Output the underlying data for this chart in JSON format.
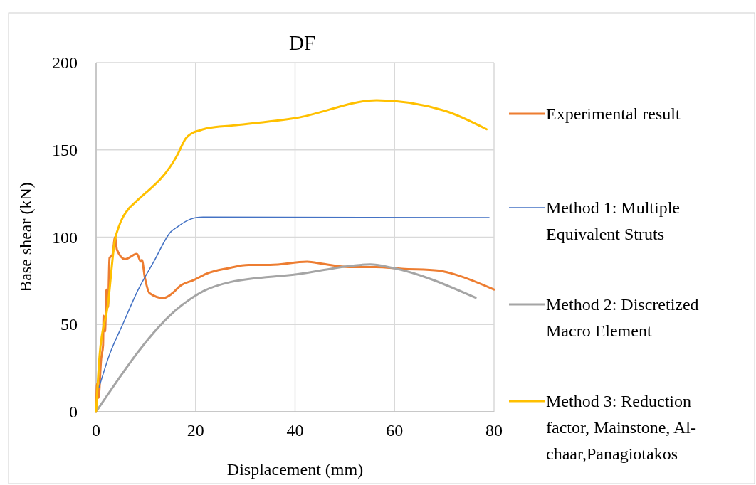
{
  "chart_data": {
    "type": "line",
    "title": "DF",
    "xlabel": "Displacement (mm)",
    "ylabel": "Base shear (kN)",
    "xlim": [
      0,
      80
    ],
    "xticks": [
      0,
      20,
      40,
      60,
      80
    ],
    "ylim": [
      0,
      200
    ],
    "yticks": [
      0,
      50,
      100,
      150,
      200
    ],
    "grid": true,
    "legend": "right",
    "marker": "none",
    "line_style": "solid",
    "series": [
      {
        "name": "Experimental result",
        "color": "#ed7d31",
        "x": [
          0,
          0.2,
          0.5,
          1,
          1.4,
          1.5,
          1.8,
          2.1,
          2.4,
          2.7,
          3.3,
          3.8,
          4.2,
          5.8,
          8.2,
          9,
          9.2,
          9.8,
          10.8,
          13.5,
          15.3,
          16.9,
          19.6,
          22.2,
          26.5,
          30.7,
          35,
          42.4,
          45.6,
          50.9,
          56.2,
          61.5,
          68.9,
          71,
          80
        ],
        "values": [
          0,
          16,
          8,
          30,
          38,
          55,
          46,
          70,
          60,
          88,
          90,
          100,
          92.7,
          87.4,
          90.4,
          86,
          87,
          76.9,
          67.8,
          65.1,
          67.8,
          72.1,
          75.4,
          79.1,
          82.2,
          84.1,
          84.1,
          85.9,
          84.7,
          82.9,
          82.9,
          81.9,
          80.9,
          79.6,
          70
        ]
      },
      {
        "name": "Method 1: Multiple Equivalent Struts",
        "color": "#4472c4",
        "x": [
          0.6,
          2.6,
          5.5,
          8.3,
          11.7,
          15,
          16.4,
          18,
          20.1,
          21.5,
          79
        ],
        "values": [
          14,
          32,
          51,
          69,
          86.5,
          103,
          106,
          109,
          111.2,
          111.5,
          111.2
        ]
      },
      {
        "name": "Method 2: Discretized Macro Element",
        "color": "#a5a5a5",
        "x": [
          0,
          16.9,
          18.3,
          21.7,
          27,
          40.3,
          55.1,
          59.3,
          76.3
        ],
        "values": [
          0,
          60.3,
          63.3,
          69.3,
          74.3,
          78.7,
          84.4,
          82.6,
          65.3
        ]
      },
      {
        "name": "Method 3: Reduction factor, Mainstone, Al-chaar,Panagiotakos",
        "color": "#ffc000",
        "x": [
          0,
          0.7,
          2.4,
          3.8,
          4.5,
          6.6,
          7.7,
          16.4,
          18,
          19.3,
          20.7,
          22.5,
          27.6,
          40.3,
          56.4,
          70.2,
          78.5
        ],
        "values": [
          0,
          32,
          62,
          98.7,
          105.5,
          116.5,
          119.5,
          147.4,
          156.5,
          159.6,
          161,
          162.5,
          164,
          168.3,
          178.4,
          172.3,
          161.8
        ]
      }
    ]
  }
}
